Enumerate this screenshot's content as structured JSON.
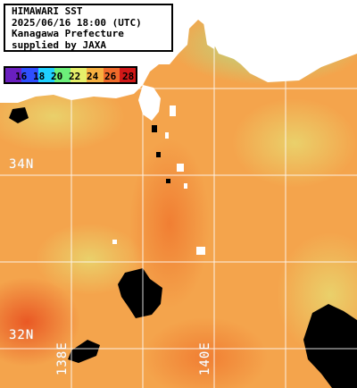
{
  "title_lines": [
    "HIMAWARI SST",
    "2025/06/16 18:00 (UTC)",
    "Kanagawa Prefecture",
    "supplied by JAXA"
  ],
  "legend": {
    "labels": [
      "16",
      "18",
      "20",
      "22",
      "24",
      "26",
      "28"
    ],
    "colors": [
      "#6a1fbf",
      "#2f4fff",
      "#1fd0ff",
      "#6cf07a",
      "#e6f06a",
      "#f6b040",
      "#f06a2a",
      "#d01818"
    ]
  },
  "grid_labels": {
    "lat_34": "34N",
    "lat_32": "32N",
    "lon_138": "138E",
    "lon_140": "140E"
  },
  "colors": {
    "land": "#ffffff",
    "cloud": "#000000",
    "grid": "#ffffff"
  }
}
